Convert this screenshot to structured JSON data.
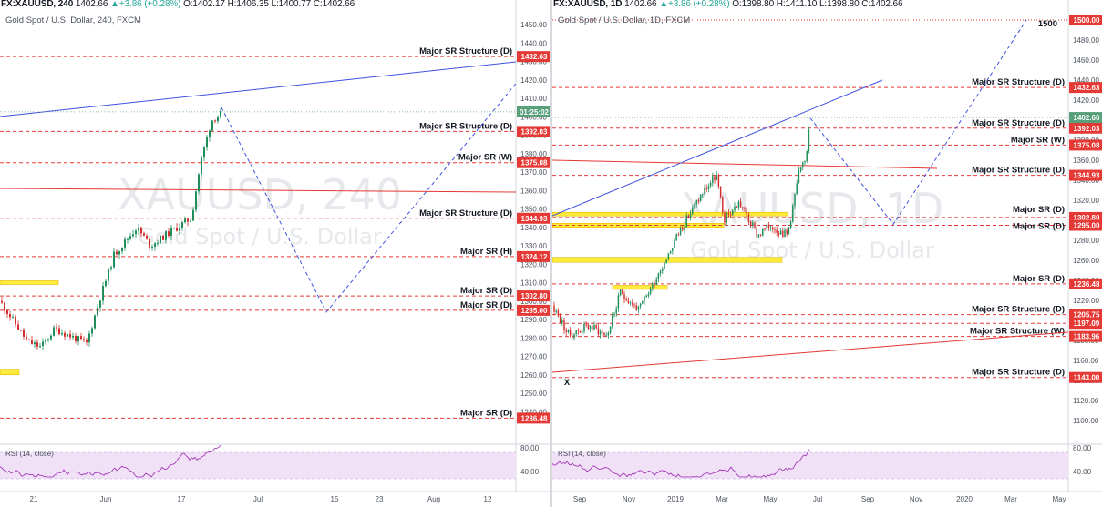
{
  "colors": {
    "level_red": "#e53935",
    "trend_blue": "#3f51e0",
    "candle_green": "#1e8f5a",
    "candle_red": "#d32f2f",
    "rsi_purple": "#9c27b0",
    "rsi_band": "#f0e1f7",
    "price_tag_green": "#58a07a",
    "zone_yellow": "#ffeb3b"
  },
  "left": {
    "header": {
      "symbol": "FX:XAUUSD, 240",
      "last": "1402.66",
      "change": "+3.86 (+0.28%)",
      "ohlc": [
        "O:1402.17",
        "H:1406.35",
        "L:1400.77",
        "C:1402.66"
      ]
    },
    "subtitle": "Gold Spot / U.S. Dollar, 240, FXCM",
    "watermark": {
      "big": "XAUUSD, 240",
      "small": "Gold Spot / U.S. Dollar"
    },
    "price_axis": [
      "1450.00",
      "1440.00",
      "1430.00",
      "1420.00",
      "1410.00",
      "1400.00",
      "1390.00",
      "1380.00",
      "1370.00",
      "1360.00",
      "1350.00",
      "1340.00",
      "1330.00",
      "1320.00",
      "1310.00",
      "1300.00",
      "1290.00",
      "1280.00",
      "1270.00",
      "1260.00",
      "1250.00",
      "1240.00"
    ],
    "levels": [
      {
        "label": "Major SR Structure (D)",
        "price": "1432.63"
      },
      {
        "label": "Major SR Structure (D)",
        "price": "1392.03"
      },
      {
        "label": "Major SR (W)",
        "price": "1375.08"
      },
      {
        "label": "Major SR Structure (D)",
        "price": "1344.93"
      },
      {
        "label": "Major SR (H)",
        "price": "1324.12"
      },
      {
        "label": "Major SR (D)",
        "price": "1302.80"
      },
      {
        "label": "Major SR (D)",
        "price": "1295.00"
      },
      {
        "label": "Major SR (D)",
        "price": "1236.48"
      }
    ],
    "countdown": "01:25:02",
    "rsi": {
      "title": "RSI (14, close)",
      "axis": [
        "80.00",
        "40.00"
      ]
    },
    "time_axis": [
      "21",
      "Jun",
      "17",
      "Jul",
      "15",
      "23",
      "Aug",
      "12"
    ]
  },
  "right": {
    "header": {
      "symbol": "FX:XAUUSD, 1D",
      "last": "1402.66",
      "change": "+3.86 (+0.28%)",
      "ohlc": [
        "O:1398.80",
        "H:1411.10",
        "L:1398.80",
        "C:1402.66"
      ]
    },
    "subtitle": "Gold Spot / U.S. Dollar, 1D, FXCM",
    "watermark": {
      "big": "XAUUSD, 1D",
      "small": "Gold Spot / U.S. Dollar"
    },
    "price_axis": [
      "1480.00",
      "1460.00",
      "1440.00",
      "1420.00",
      "1400.00",
      "1380.00",
      "1360.00",
      "1340.00",
      "1320.00",
      "1300.00",
      "1280.00",
      "1260.00",
      "1240.00",
      "1220.00",
      "1200.00",
      "1180.00",
      "1160.00",
      "1140.00",
      "1120.00",
      "1100.00"
    ],
    "levels": [
      {
        "label": "",
        "price": "1500.00"
      },
      {
        "label": "Major SR Structure (D)",
        "price": "1432.63"
      },
      {
        "label": "Major SR Structure (D)",
        "price": "1392.03"
      },
      {
        "label": "Major SR (W)",
        "price": "1375.08"
      },
      {
        "label": "Major SR Structure (D)",
        "price": "1344.93"
      },
      {
        "label": "Major SR (D)",
        "price": "1302.80"
      },
      {
        "label": "Major SR (D)",
        "price": "1295.00"
      },
      {
        "label": "Major SR (D)",
        "price": "1236.48"
      },
      {
        "label": "Major SR Structure (D)",
        "price": "1205.75"
      },
      {
        "label": "",
        "price": "1197.09"
      },
      {
        "label": "Major SR Structure (W)",
        "price": "1183.96"
      },
      {
        "label": "Major SR Structure (D)",
        "price": "1143.00"
      }
    ],
    "target_label": "1500",
    "x_marker": "X",
    "rsi": {
      "title": "RSI (14, close)",
      "axis": [
        "80.00",
        "40.00"
      ]
    },
    "time_axis": [
      "Sep",
      "Nov",
      "2019",
      "Mar",
      "May",
      "Jul",
      "Sep",
      "Nov",
      "2020",
      "Mar",
      "May"
    ]
  }
}
